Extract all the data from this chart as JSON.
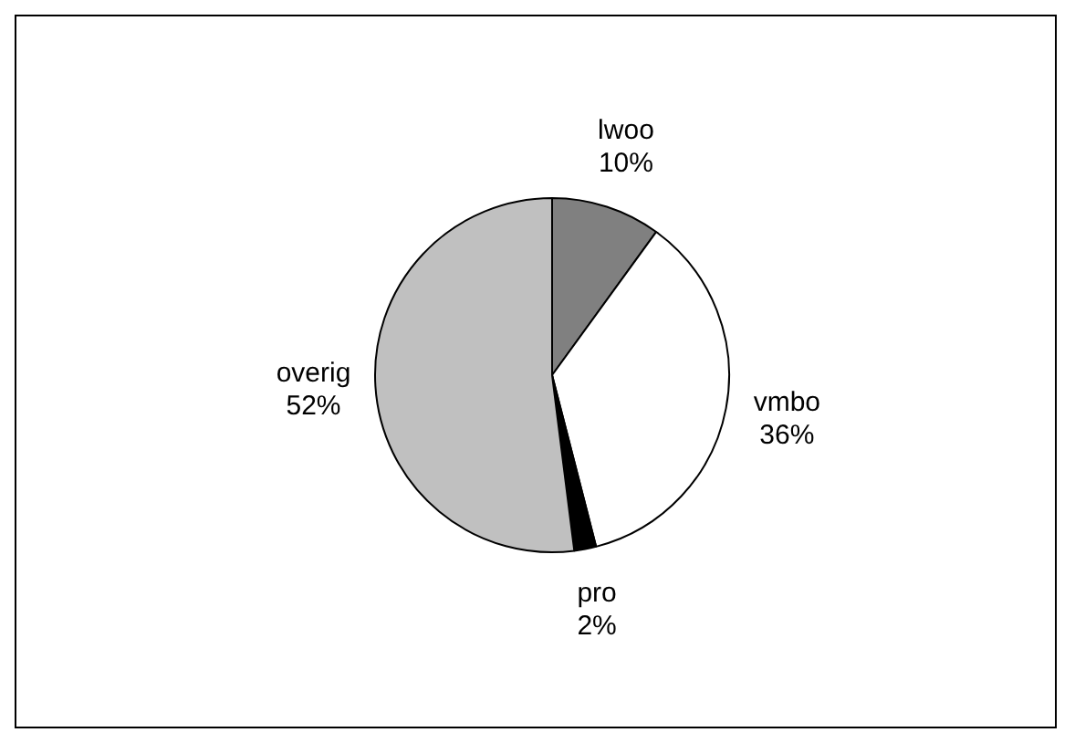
{
  "chart_data": {
    "type": "pie",
    "categories": [
      "lwoo",
      "vmbo",
      "pro",
      "overig"
    ],
    "values": [
      10,
      36,
      2,
      52
    ],
    "colors": [
      "#808080",
      "#ffffff",
      "#000000",
      "#c0c0c0"
    ],
    "value_labels": [
      "10%",
      "36%",
      "2%",
      "52%"
    ],
    "legend": false
  }
}
